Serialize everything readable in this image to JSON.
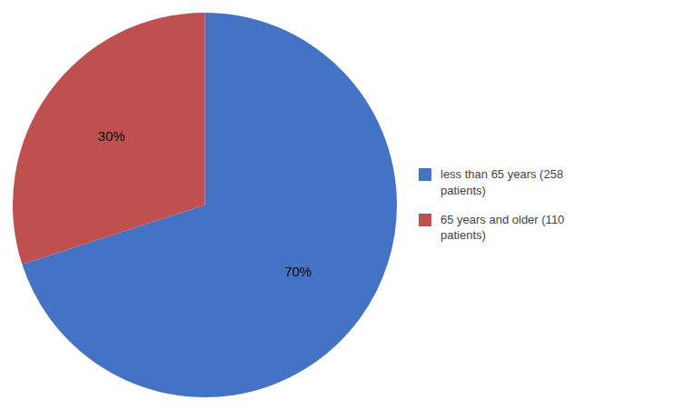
{
  "chart_data": {
    "type": "pie",
    "categories": [
      "less than 65 years (258\npatients)",
      "65 years and older (110\npatients)"
    ],
    "values": [
      70,
      30
    ],
    "value_labels": [
      "70%",
      "30%"
    ],
    "colors": [
      "#4472C4",
      "#BE5050"
    ],
    "data_labels": true,
    "legend": "right"
  }
}
